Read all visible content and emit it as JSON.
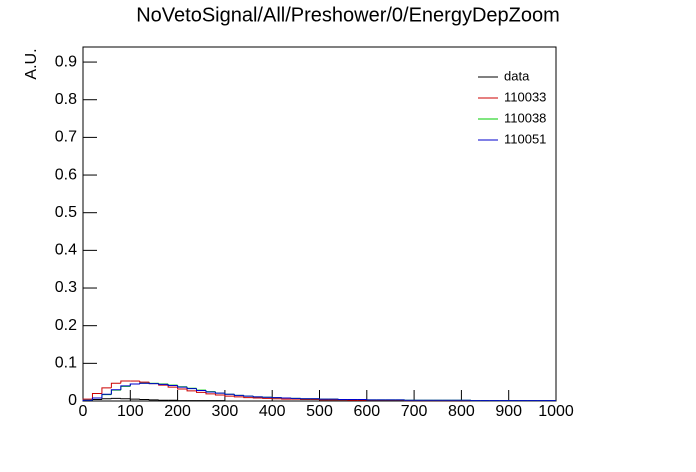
{
  "chart_data": {
    "type": "histogram",
    "title": "NoVetoSignal/All/Preshower/0/EnergyDepZoom",
    "y_label": "A.U.",
    "bins": [
      0,
      20,
      40,
      60,
      80,
      100,
      120,
      140,
      160,
      180,
      200,
      220,
      240,
      260,
      280,
      300,
      320,
      340,
      360,
      380,
      400,
      420,
      440,
      460,
      480,
      500,
      520,
      540,
      560,
      580,
      600,
      620,
      640,
      660,
      680,
      700,
      720,
      740,
      760,
      780,
      800,
      820,
      840,
      860,
      880,
      900,
      920,
      940,
      960,
      980,
      1000
    ],
    "series": [
      {
        "name": "data",
        "color": "#000000",
        "values": [
          0.001,
          0.004,
          0.006,
          0.007,
          0.006,
          0.005,
          0.004,
          0.003,
          0.002,
          0.002,
          0.001,
          0.001,
          0.001,
          0.001,
          0.001,
          0,
          0,
          0,
          0,
          0,
          0,
          0,
          0,
          0,
          0,
          0,
          0,
          0,
          0,
          0,
          0,
          0,
          0,
          0,
          0,
          0,
          0,
          0,
          0,
          0,
          0,
          0,
          0,
          0,
          0,
          0,
          0,
          0,
          0,
          0
        ]
      },
      {
        "name": "110033",
        "color": "#cc0000",
        "values": [
          0.005,
          0.02,
          0.035,
          0.047,
          0.053,
          0.053,
          0.05,
          0.046,
          0.042,
          0.037,
          0.032,
          0.027,
          0.023,
          0.019,
          0.016,
          0.013,
          0.011,
          0.009,
          0.008,
          0.007,
          0.006,
          0.005,
          0.005,
          0.004,
          0.004,
          0.003,
          0.003,
          0.003,
          0.002,
          0.002,
          0.002,
          0.002,
          0.002,
          0.002,
          0.001,
          0.001,
          0.001,
          0.001,
          0.001,
          0.001,
          0.001,
          0.001,
          0.001,
          0.001,
          0.001,
          0.001,
          0.001,
          0.001,
          0.001,
          0.001
        ]
      },
      {
        "name": "110038",
        "color": "#00cc00",
        "values": [
          0.002,
          0.008,
          0.017,
          0.029,
          0.039,
          0.045,
          0.047,
          0.047,
          0.045,
          0.042,
          0.038,
          0.034,
          0.029,
          0.025,
          0.021,
          0.018,
          0.015,
          0.013,
          0.011,
          0.01,
          0.009,
          0.008,
          0.007,
          0.006,
          0.006,
          0.005,
          0.005,
          0.004,
          0.004,
          0.004,
          0.003,
          0.003,
          0.003,
          0.003,
          0.002,
          0.002,
          0.002,
          0.002,
          0.002,
          0.002,
          0.002,
          0.001,
          0.001,
          0.001,
          0.001,
          0.001,
          0.001,
          0.001,
          0.001,
          0.001
        ]
      },
      {
        "name": "110051",
        "color": "#0000cc",
        "values": [
          0.002,
          0.008,
          0.018,
          0.03,
          0.04,
          0.045,
          0.047,
          0.046,
          0.044,
          0.041,
          0.037,
          0.033,
          0.028,
          0.024,
          0.021,
          0.018,
          0.015,
          0.013,
          0.011,
          0.01,
          0.009,
          0.008,
          0.007,
          0.006,
          0.006,
          0.005,
          0.005,
          0.004,
          0.004,
          0.004,
          0.003,
          0.003,
          0.003,
          0.003,
          0.002,
          0.002,
          0.002,
          0.002,
          0.002,
          0.002,
          0.002,
          0.001,
          0.001,
          0.001,
          0.001,
          0.001,
          0.001,
          0.001,
          0.001,
          0.001
        ]
      }
    ],
    "xlim": [
      0,
      1000
    ],
    "xticks": [
      0,
      100,
      200,
      300,
      400,
      500,
      600,
      700,
      800,
      900,
      1000
    ],
    "ylim": [
      0,
      0.94
    ],
    "yticks": [
      0,
      0.1,
      0.2,
      0.3,
      0.4,
      0.5,
      0.6,
      0.7,
      0.8,
      0.9
    ],
    "legend": "top-right",
    "grid": false
  }
}
